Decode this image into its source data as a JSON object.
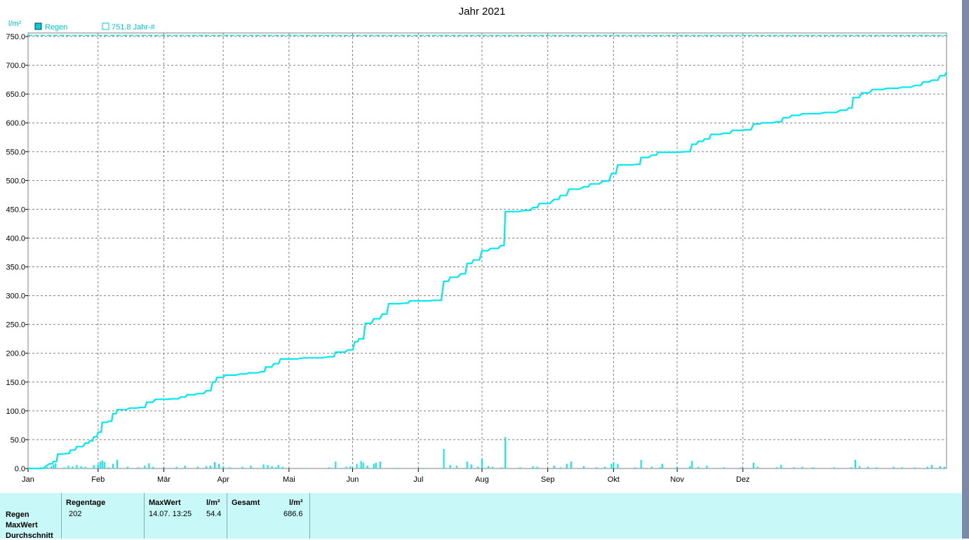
{
  "chart_data": {
    "type": "line",
    "title": "Jahr 2021",
    "ylabel": "l/m²",
    "ylim": [
      0,
      750
    ],
    "yticks": [
      "0.0",
      "50.0",
      "100.0",
      "150.0",
      "200.0",
      "250.0",
      "300.0",
      "350.0",
      "400.0",
      "450.0",
      "500.0",
      "550.0",
      "600.0",
      "650.0",
      "700.0",
      "750.0"
    ],
    "xticks": [
      "Jan",
      "Feb",
      "Mär",
      "Apr",
      "Mai",
      "Jun",
      "Jul",
      "Aug",
      "Sep",
      "Okt",
      "Nov",
      "Dez"
    ],
    "grid": true,
    "legend": [
      {
        "label": "Regen",
        "color": "#00ced8",
        "filled": true
      },
      {
        "label": "751.8 Jahr-#",
        "color": "#00ced8",
        "filled": false
      }
    ],
    "reference_line": {
      "value": 751.8,
      "color": "#00e0e0"
    },
    "series": [
      {
        "name": "Regen",
        "kind": "cumulative",
        "color": "#00e8f0",
        "points": [
          [
            0,
            0
          ],
          [
            10,
            8
          ],
          [
            12,
            12
          ],
          [
            14,
            25
          ],
          [
            18,
            26
          ],
          [
            20,
            32
          ],
          [
            23,
            38
          ],
          [
            27,
            44
          ],
          [
            29,
            48
          ],
          [
            31,
            55
          ],
          [
            33,
            63
          ],
          [
            35,
            80
          ],
          [
            38,
            82
          ],
          [
            40,
            95
          ],
          [
            42,
            102
          ],
          [
            48,
            105
          ],
          [
            53,
            106
          ],
          [
            56,
            115
          ],
          [
            60,
            120
          ],
          [
            68,
            121
          ],
          [
            72,
            124
          ],
          [
            75,
            128
          ],
          [
            80,
            130
          ],
          [
            84,
            135
          ],
          [
            87,
            150
          ],
          [
            89,
            158
          ],
          [
            93,
            162
          ],
          [
            100,
            164
          ],
          [
            104,
            166
          ],
          [
            110,
            168
          ],
          [
            112,
            176
          ],
          [
            116,
            182
          ],
          [
            119,
            190
          ],
          [
            130,
            192
          ],
          [
            142,
            194
          ],
          [
            145,
            202
          ],
          [
            151,
            206
          ],
          [
            154,
            220
          ],
          [
            156,
            225
          ],
          [
            159,
            252
          ],
          [
            163,
            260
          ],
          [
            167,
            268
          ],
          [
            170,
            286
          ],
          [
            177,
            287
          ],
          [
            180,
            291
          ],
          [
            192,
            292
          ],
          [
            196,
            325
          ],
          [
            199,
            332
          ],
          [
            204,
            338
          ],
          [
            207,
            356
          ],
          [
            210,
            362
          ],
          [
            214,
            378
          ],
          [
            218,
            382
          ],
          [
            223,
            387
          ],
          [
            225,
            446
          ],
          [
            234,
            448
          ],
          [
            238,
            453
          ],
          [
            241,
            460
          ],
          [
            248,
            467
          ],
          [
            251,
            474
          ],
          [
            255,
            485
          ],
          [
            262,
            489
          ],
          [
            265,
            494
          ],
          [
            271,
            499
          ],
          [
            275,
            512
          ],
          [
            278,
            527
          ],
          [
            287,
            528
          ],
          [
            289,
            540
          ],
          [
            294,
            544
          ],
          [
            297,
            549
          ],
          [
            310,
            550
          ],
          [
            313,
            563
          ],
          [
            316,
            568
          ],
          [
            319,
            572
          ],
          [
            322,
            580
          ],
          [
            328,
            582
          ],
          [
            332,
            587
          ],
          [
            338,
            588
          ],
          [
            342,
            598
          ],
          [
            346,
            600
          ],
          [
            353,
            602
          ],
          [
            356,
            609
          ],
          [
            360,
            613
          ],
          [
            365,
            616
          ],
          [
            376,
            618
          ],
          [
            383,
            622
          ],
          [
            387,
            626
          ],
          [
            389,
            644
          ],
          [
            393,
            652
          ],
          [
            398,
            658
          ],
          [
            405,
            660
          ],
          [
            412,
            662
          ],
          [
            418,
            665
          ],
          [
            422,
            671
          ],
          [
            426,
            674
          ],
          [
            430,
            682
          ],
          [
            433,
            688
          ]
        ]
      },
      {
        "name": "Regen",
        "kind": "daily",
        "color": "#00e8f0",
        "points": [
          [
            2,
            1.5
          ],
          [
            4,
            1.2
          ],
          [
            6,
            2
          ],
          [
            8,
            3
          ],
          [
            9,
            2.5
          ],
          [
            11,
            4
          ],
          [
            12,
            7
          ],
          [
            13,
            9
          ],
          [
            17,
            2
          ],
          [
            19,
            5
          ],
          [
            21,
            3.5
          ],
          [
            23,
            6
          ],
          [
            25,
            4
          ],
          [
            27,
            3
          ],
          [
            31,
            6
          ],
          [
            33,
            7
          ],
          [
            34,
            12
          ],
          [
            35,
            14
          ],
          [
            36,
            11
          ],
          [
            38,
            2
          ],
          [
            40,
            8
          ],
          [
            42,
            15
          ],
          [
            47,
            3
          ],
          [
            52,
            2
          ],
          [
            55,
            5
          ],
          [
            57,
            9
          ],
          [
            59,
            3
          ],
          [
            64,
            2
          ],
          [
            70,
            3
          ],
          [
            74,
            5
          ],
          [
            80,
            3
          ],
          [
            84,
            4
          ],
          [
            86,
            5
          ],
          [
            88,
            11
          ],
          [
            90,
            8
          ],
          [
            92,
            4
          ],
          [
            95,
            2
          ],
          [
            101,
            3
          ],
          [
            105,
            5
          ],
          [
            111,
            7
          ],
          [
            113,
            6
          ],
          [
            115,
            4
          ],
          [
            117,
            2
          ],
          [
            118,
            6
          ],
          [
            120,
            3
          ],
          [
            130,
            1
          ],
          [
            142,
            2
          ],
          [
            145,
            12
          ],
          [
            150,
            3
          ],
          [
            152,
            4
          ],
          [
            155,
            8
          ],
          [
            157,
            13
          ],
          [
            158,
            10
          ],
          [
            160,
            5
          ],
          [
            163,
            8
          ],
          [
            164,
            10
          ],
          [
            166,
            12
          ],
          [
            174,
            1
          ],
          [
            186,
            1
          ],
          [
            196,
            34
          ],
          [
            199,
            6
          ],
          [
            202,
            5
          ],
          [
            207,
            12
          ],
          [
            209,
            7
          ],
          [
            212,
            3
          ],
          [
            214,
            17
          ],
          [
            217,
            4
          ],
          [
            219,
            3
          ],
          [
            223,
            2
          ],
          [
            225,
            54.4
          ],
          [
            232,
            2
          ],
          [
            238,
            4
          ],
          [
            240,
            3
          ],
          [
            248,
            5
          ],
          [
            251,
            2
          ],
          [
            254,
            8
          ],
          [
            256,
            12
          ],
          [
            262,
            4
          ],
          [
            268,
            2
          ],
          [
            272,
            3
          ],
          [
            275,
            8
          ],
          [
            276,
            11
          ],
          [
            278,
            8
          ],
          [
            286,
            2
          ],
          [
            289,
            15
          ],
          [
            294,
            3
          ],
          [
            298,
            2
          ],
          [
            299,
            8
          ],
          [
            306,
            3
          ],
          [
            312,
            4
          ],
          [
            313,
            13
          ],
          [
            316,
            3
          ],
          [
            320,
            5
          ],
          [
            328,
            2
          ],
          [
            336,
            2
          ],
          [
            342,
            10
          ],
          [
            344,
            3
          ],
          [
            353,
            2
          ],
          [
            355,
            6
          ],
          [
            361,
            2
          ],
          [
            365,
            3
          ],
          [
            370,
            2
          ],
          [
            380,
            2
          ],
          [
            388,
            2
          ],
          [
            390,
            15
          ],
          [
            392,
            4
          ],
          [
            396,
            3
          ],
          [
            400,
            2
          ],
          [
            408,
            3
          ],
          [
            412,
            2
          ],
          [
            418,
            2
          ],
          [
            424,
            3
          ],
          [
            426,
            6
          ],
          [
            430,
            4
          ],
          [
            432,
            3
          ]
        ]
      }
    ]
  },
  "stats": {
    "row_labels": [
      "Regen",
      "MaxWert",
      "Durchschnitt"
    ],
    "col_regentage": {
      "header": "Regentage",
      "value": "202"
    },
    "col_maxwert": {
      "header": "MaxWert",
      "unit": "l/m²",
      "date": "14.07.  13:25",
      "value": "54.4"
    },
    "col_gesamt": {
      "header": "Gesamt",
      "unit": "l/m²",
      "value": "686.6"
    }
  }
}
